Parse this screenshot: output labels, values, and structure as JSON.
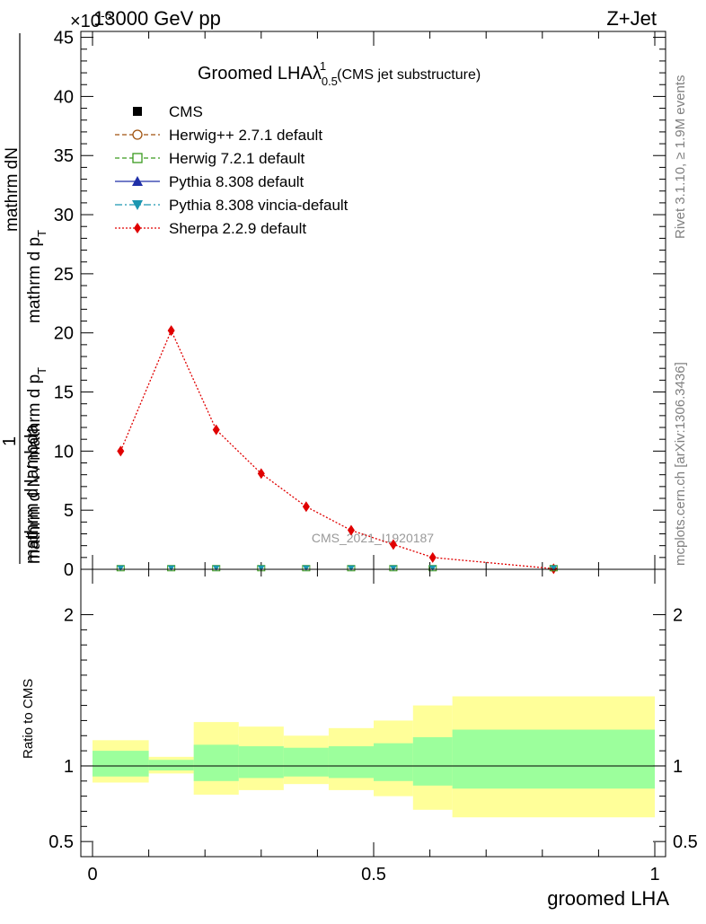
{
  "header": {
    "left": "13000 GeV pp",
    "right": "Z+Jet",
    "exponent": "×10",
    "exponent_sup": "-6"
  },
  "side": {
    "rivet": "Rivet 3.1.10, ≥ 1.9M events",
    "mcplots": "mcplots.cern.ch [arXiv:1306.3436]"
  },
  "watermark": "CMS_2021_I1920187",
  "chart_data": {
    "type": "line",
    "title": "Groomed LHA",
    "title_symbol": "λ",
    "title_sup": "1",
    "title_sub": "0.5",
    "title_suffix": "(CMS jet substructure)",
    "ylabel_top": "1",
    "ylabel_num": "mathrm dN",
    "ylabel_num_tail": "mathrm d p",
    "ylabel_num_sub": "T",
    "ylabel_num_end": "mathrm d lambda",
    "ylabel_den": "mathrm d N / mathrm d p",
    "ylabel_den_sub": "T",
    "xlabel": "groomed LHA",
    "ratio_ylabel": "Ratio to CMS",
    "xlim": [
      0,
      1
    ],
    "ylim": [
      0,
      45.5
    ],
    "ratio_ylim": [
      0.4,
      2.3
    ],
    "x_ticks": [
      "0",
      "0.5",
      "1"
    ],
    "y_ticks": [
      "0",
      "5",
      "10",
      "15",
      "20",
      "25",
      "30",
      "35",
      "40",
      "45"
    ],
    "ratio_ticks": [
      "0.5",
      "1",
      "2"
    ],
    "legend": [
      {
        "name": "CMS",
        "color": "#000000",
        "marker": "square-filled",
        "dash": "none"
      },
      {
        "name": "Herwig++ 2.7.1 default",
        "color": "#a0520d",
        "marker": "circle-open",
        "dash": "5,3"
      },
      {
        "name": "Herwig 7.2.1 default",
        "color": "#3a9a1e",
        "marker": "square-open",
        "dash": "5,3"
      },
      {
        "name": "Pythia 8.308 default",
        "color": "#1f2fa8",
        "marker": "triangle-up",
        "dash": "none"
      },
      {
        "name": "Pythia 8.308 vincia-default",
        "color": "#1a96b0",
        "marker": "triangle-down",
        "dash": "8,3,2,3"
      },
      {
        "name": "Sherpa 2.2.9 default",
        "color": "#e00000",
        "marker": "diamond",
        "dash": "2,2"
      }
    ],
    "bins": [
      0.0,
      0.1,
      0.18,
      0.26,
      0.34,
      0.42,
      0.5,
      0.57,
      0.64,
      1.0
    ],
    "mc_points": {
      "x": [
        0.05,
        0.14,
        0.22,
        0.3,
        0.38,
        0.46,
        0.535,
        0.605,
        0.82
      ],
      "y": [
        0.02,
        0.02,
        0.02,
        0.02,
        0.02,
        0.02,
        0.02,
        0.02,
        0.02
      ]
    },
    "sherpa": {
      "x": [
        0.05,
        0.14,
        0.22,
        0.3,
        0.38,
        0.46,
        0.535,
        0.605,
        0.82
      ],
      "y": [
        10.0,
        20.2,
        11.8,
        8.1,
        5.3,
        3.3,
        2.1,
        1.0,
        0.05
      ]
    },
    "ratio_band_inner": [
      {
        "lo": 0.93,
        "hi": 1.1
      },
      {
        "lo": 0.97,
        "hi": 1.04
      },
      {
        "lo": 0.9,
        "hi": 1.14
      },
      {
        "lo": 0.92,
        "hi": 1.13
      },
      {
        "lo": 0.93,
        "hi": 1.12
      },
      {
        "lo": 0.92,
        "hi": 1.13
      },
      {
        "lo": 0.9,
        "hi": 1.15
      },
      {
        "lo": 0.87,
        "hi": 1.19
      },
      {
        "lo": 0.85,
        "hi": 1.24
      }
    ],
    "ratio_band_outer": [
      {
        "lo": 0.89,
        "hi": 1.17
      },
      {
        "lo": 0.95,
        "hi": 1.06
      },
      {
        "lo": 0.81,
        "hi": 1.29
      },
      {
        "lo": 0.84,
        "hi": 1.26
      },
      {
        "lo": 0.88,
        "hi": 1.2
      },
      {
        "lo": 0.84,
        "hi": 1.25
      },
      {
        "lo": 0.8,
        "hi": 1.3
      },
      {
        "lo": 0.71,
        "hi": 1.4
      },
      {
        "lo": 0.66,
        "hi": 1.46
      }
    ],
    "colors": {
      "band_inner": "#9cff9c",
      "band_outer": "#ffff99",
      "sherpa": "#e00000",
      "mc_marker": "#1a96b0"
    }
  }
}
